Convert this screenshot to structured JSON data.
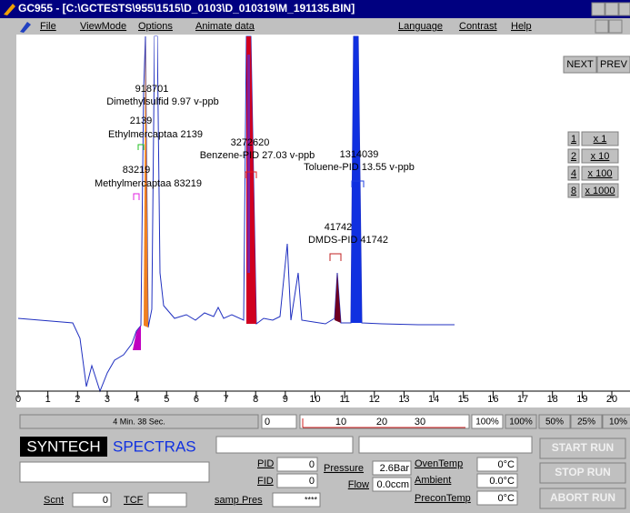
{
  "window": {
    "title": "GC955 - [C:\\GCTESTS\\955\\1515\\D_0103\\D_010319\\M_191135.BIN]"
  },
  "menu": [
    "File",
    "ViewMode",
    "Options",
    "Animate data",
    "Language",
    "Contrast",
    "Help"
  ],
  "chart": {
    "peaks": [
      {
        "area": 918701,
        "label": "Dimethylsulfid 9.97 v-ppb"
      },
      {
        "area": 2139,
        "label": "Ethylmercaptaa 2139"
      },
      {
        "area": 83219,
        "label": "Methylmercaptaa 83219"
      },
      {
        "area": 3272620,
        "label": "Benzene-PID 27.03 v-ppb"
      },
      {
        "area": 1314039,
        "label": "Toluene-PID 13.55 v-ppb"
      },
      {
        "area": 41742,
        "label": "DMDS-PID 41742"
      }
    ],
    "xlim": [
      0,
      20
    ],
    "xticks": [
      0,
      1,
      2,
      3,
      4,
      5,
      6,
      7,
      8,
      9,
      10,
      11,
      12,
      13,
      14,
      15,
      16,
      17,
      18,
      19,
      20
    ]
  },
  "nav": [
    "NEXT",
    "PREV"
  ],
  "scale_buttons": [
    {
      "key": "1",
      "label": "x 1"
    },
    {
      "key": "2",
      "label": "x 10"
    },
    {
      "key": "4",
      "label": "x 100"
    },
    {
      "key": "8",
      "label": "x 1000"
    }
  ],
  "status": {
    "time": "4 Min. 38 Sec.",
    "offset": "0",
    "scale_marks": [
      "10",
      "20",
      "30"
    ],
    "zoom": [
      "100%",
      "100%",
      "50%",
      "25%",
      "10%"
    ]
  },
  "brand": {
    "name": "SYNTECH",
    "product": "SPECTRAS"
  },
  "fields": {
    "pid_label": "PID",
    "pid": "0",
    "fid_label": "FID",
    "fid": "0",
    "pressure_label": "Pressure",
    "pressure": "2.6Bar",
    "flow_label": "Flow",
    "flow": "0.0ccm",
    "oven_label": "OvenTemp",
    "oven": "0°C",
    "ambient_label": "Ambient",
    "ambient": "0.0°C",
    "precon_label": "PreconTemp",
    "precon": "0°C",
    "scnt_label": "Scnt",
    "scnt": "0",
    "tcf_label": "TCF",
    "samp_label": "samp Pres",
    "samp": "****"
  },
  "buttons": [
    "START RUN",
    "STOP RUN",
    "ABORT RUN"
  ]
}
